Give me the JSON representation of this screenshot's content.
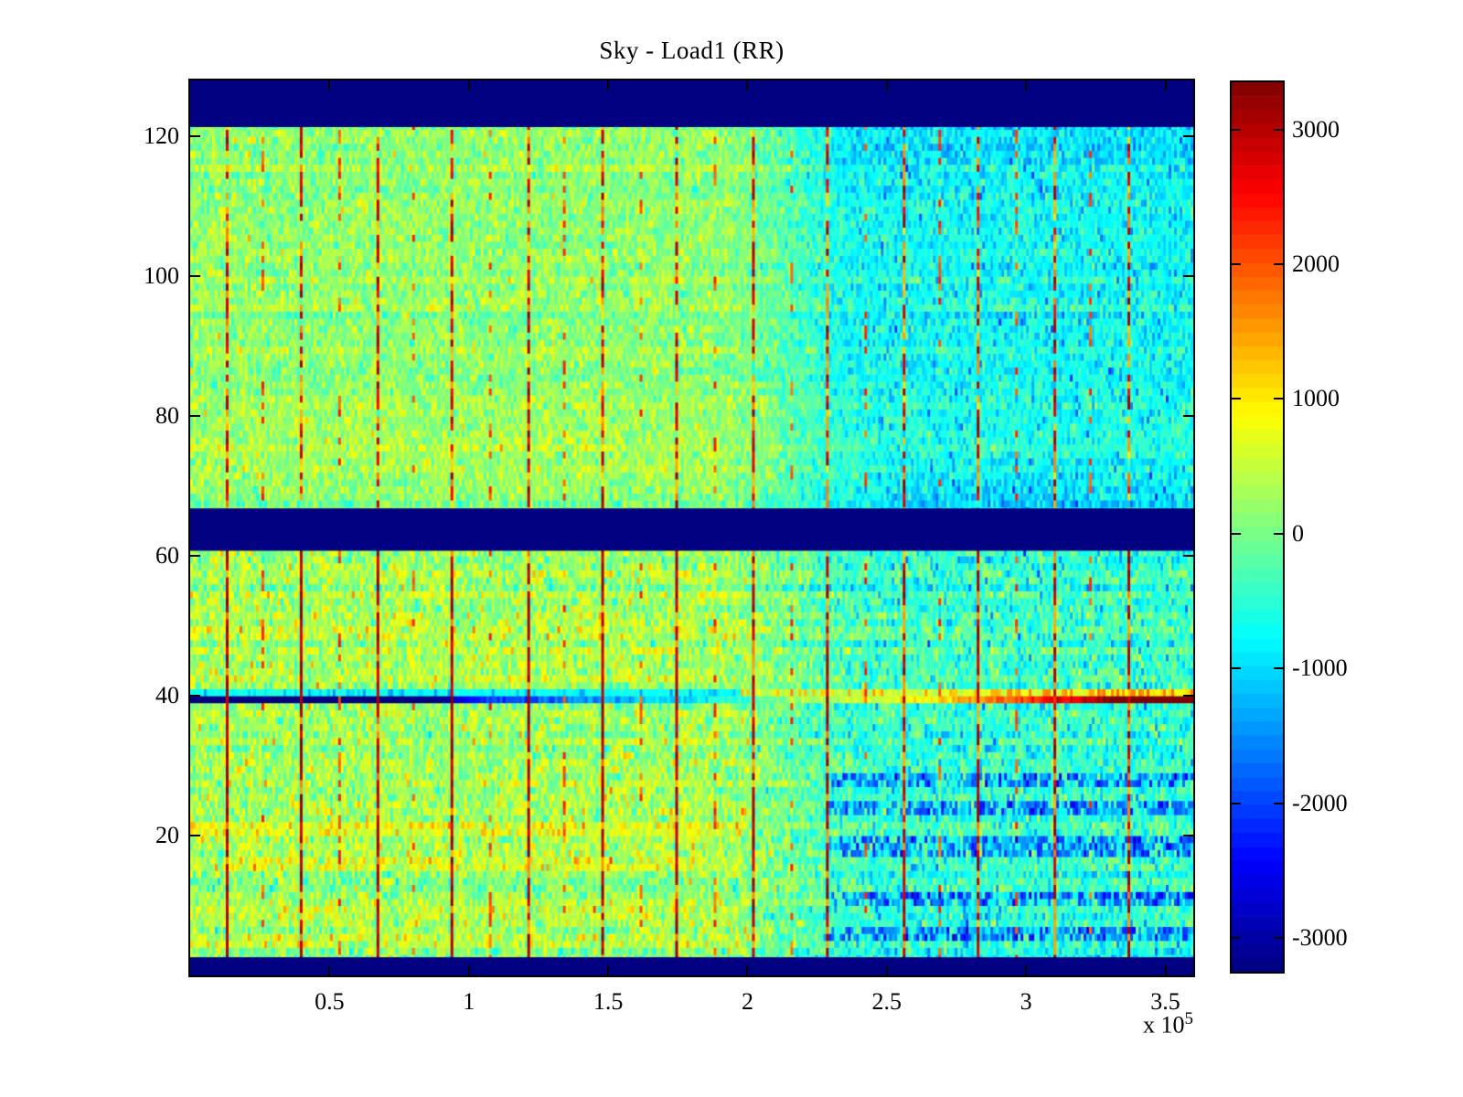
{
  "figure": {
    "background_color": "#ffffff"
  },
  "chart_data": {
    "type": "heatmap",
    "title": "Sky - Load1 (RR)",
    "colormap": "jet",
    "xlim": [
      0,
      360000
    ],
    "ylim": [
      0,
      128
    ],
    "clim": [
      -3250,
      3350
    ],
    "x_axis": {
      "tick_values": [
        50000,
        100000,
        150000,
        200000,
        250000,
        300000,
        350000
      ],
      "tick_labels": [
        "0.5",
        "1",
        "1.5",
        "2",
        "2.5",
        "3",
        "3.5"
      ],
      "exponent_prefix": "x 10",
      "exponent": "5"
    },
    "y_axis": {
      "tick_values": [
        20,
        40,
        60,
        80,
        100,
        120
      ],
      "tick_labels": [
        "20",
        "40",
        "60",
        "80",
        "100",
        "120"
      ]
    },
    "colorbar": {
      "orientation": "vertical",
      "position": "right",
      "tick_values": [
        3000,
        2000,
        1000,
        0,
        -1000,
        -2000,
        -3000
      ],
      "tick_labels": [
        "3000",
        "2000",
        "1000",
        "0",
        "-1000",
        "-2000",
        "-3000"
      ],
      "levels": 64,
      "max_color": "#7f0000",
      "min_color": "#000080"
    },
    "generator": {
      "comment": "procedural description of the depicted image content",
      "grid_cols": 366,
      "grid_rows": 128,
      "seed": 42,
      "flagged_navy_row_bands": [
        [
          121.4,
          128
        ],
        [
          60.8,
          66.8
        ],
        [
          0,
          2.6
        ]
      ],
      "vertical_calibration_lines": {
        "start_x": 13000,
        "spacing_x": 27000,
        "count": 13,
        "strengths": [
          0.9,
          0.95,
          0.92,
          0.95,
          0.88,
          0.92,
          0.9,
          0.78,
          0.72,
          0.68,
          0.64,
          0.62,
          0.58
        ],
        "faint_midline_probability": 0.26
      },
      "background_field": {
        "mean_left_upper": 170,
        "mean_left_lower": 270,
        "mean_right_upper": -680,
        "mean_right_lower": -420,
        "transition_x_start": 185000,
        "transition_x_end": 245000,
        "noise_sd_upper": 300,
        "noise_sd_lower": 380,
        "row_offset_sd": 110,
        "top_rows_extra_cool": -230,
        "rows_above_midband_right_extra_cool": -160
      },
      "special_rows": {
        "gradient_row": 40,
        "gradient_profile": "solid -3250 for x<88k, rises through blue/cyan stripes 105k-205k, yellow-orange stripes 205k-268k, red stripes 268k-330k, solid +3350 beyond 330k",
        "contrast_row": 41,
        "contrast_profile": "cyan/blue stripes (-700) for x<195k, yellow-orange stripes (+250..+950) beyond"
      },
      "blue_streak_rows_right": [
        6,
        7,
        11,
        12,
        18,
        19,
        20,
        24,
        25,
        28,
        29
      ],
      "blue_streak_x_min": 228000,
      "warm_rows_left": [
        5,
        6,
        9,
        10,
        16,
        17,
        21,
        22
      ],
      "cool_rows_left": [
        13,
        14
      ],
      "warm_cool_x_max": 198000
    }
  }
}
